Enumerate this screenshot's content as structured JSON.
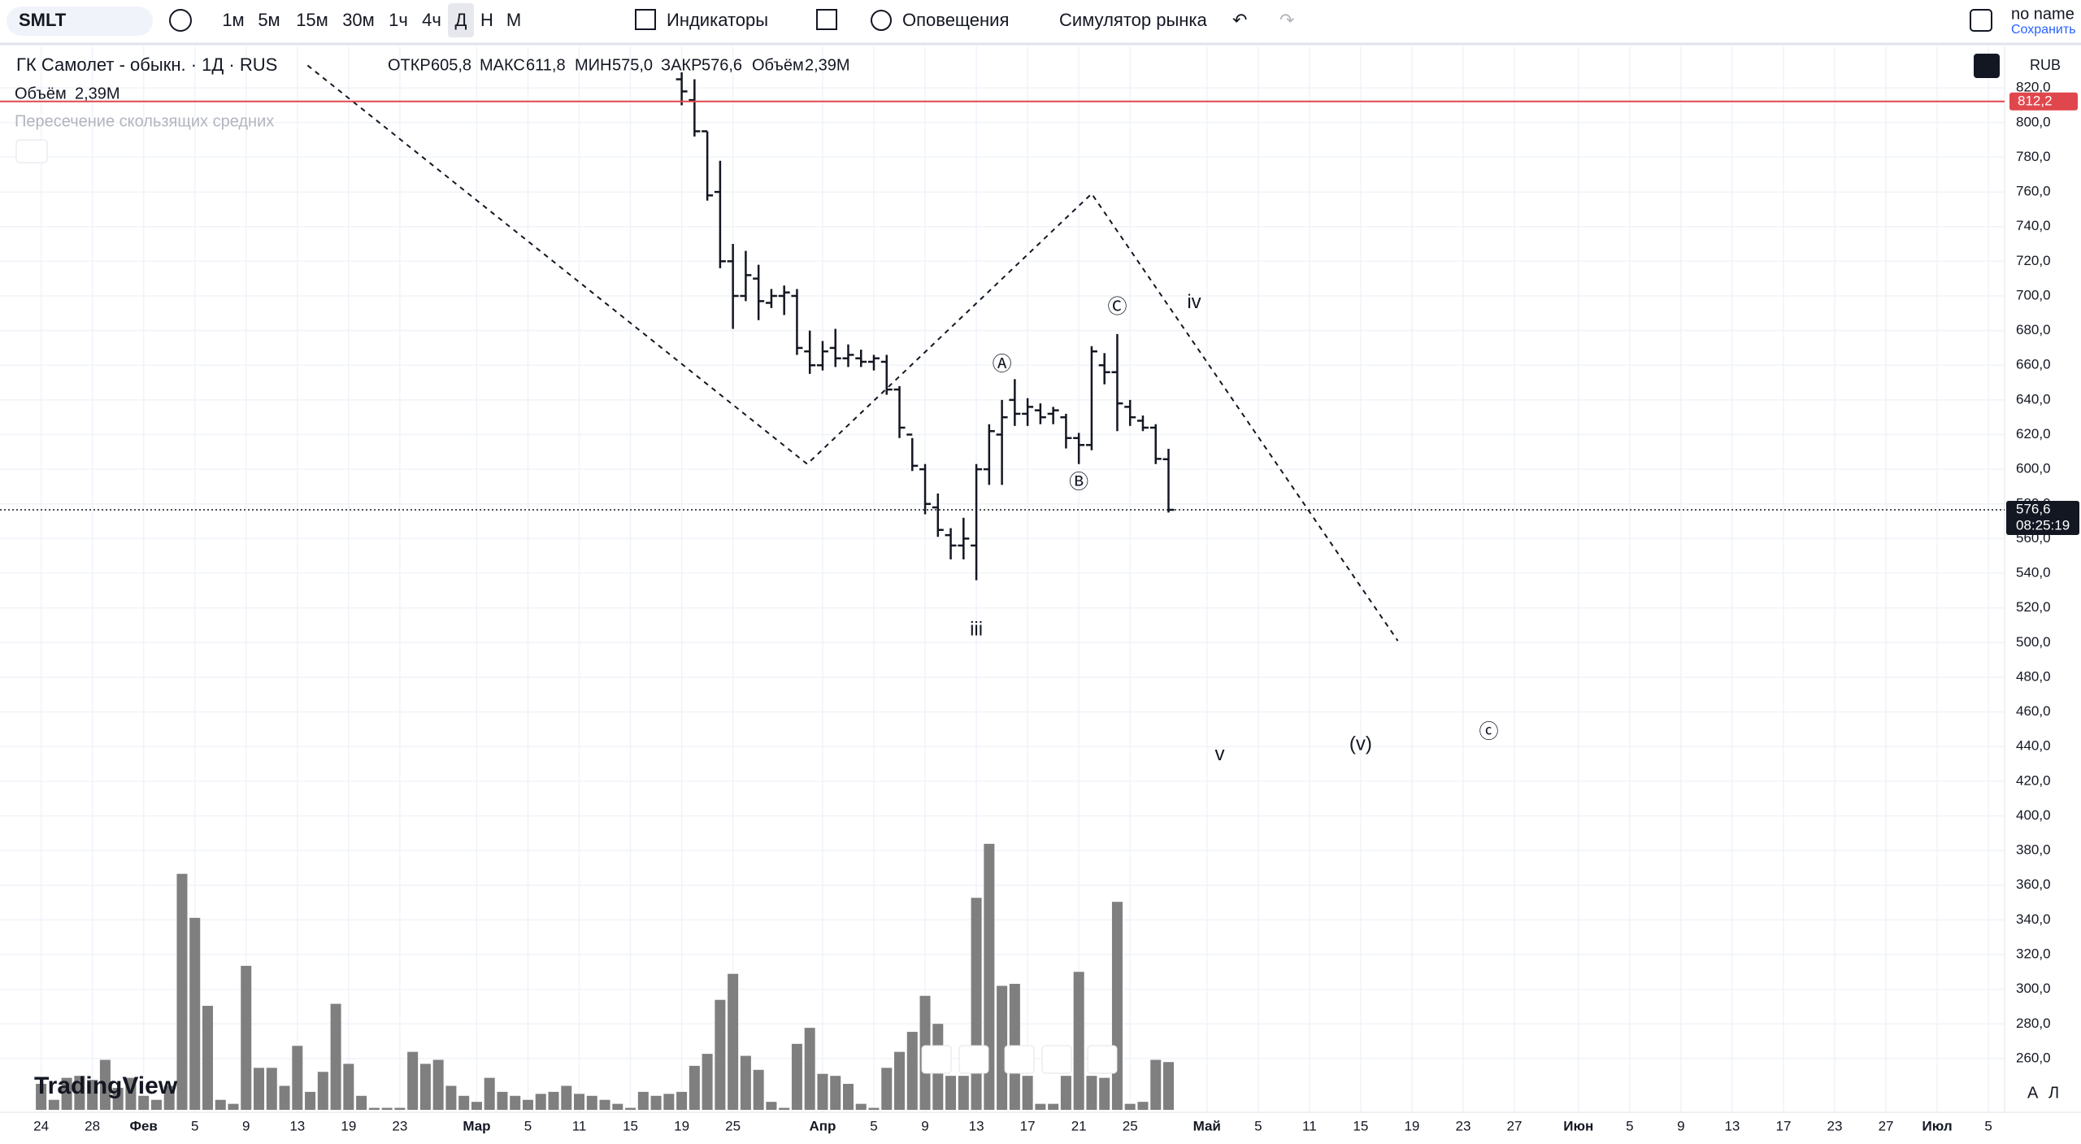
{
  "toolbar": {
    "symbol": "SMLT",
    "intervals": [
      "1м",
      "5м",
      "15м",
      "30м",
      "1ч",
      "4ч",
      "Д",
      "Н",
      "М"
    ],
    "indicators": "Индикаторы",
    "alerts": "Оповещения",
    "replay": "Симулятор рынка",
    "layout_name": "no name",
    "save": "Сохранить"
  },
  "legend": {
    "title": "ГК Самолет - обыкн. · 1Д · RUS",
    "open_label": "ОТКР",
    "open": "605,8",
    "high_label": "МАКС",
    "high": "611,8",
    "low_label": "МИН",
    "low": "575,0",
    "close_label": "ЗАКР",
    "close": "576,6",
    "volume_label": "Объём",
    "volume": "2,39M",
    "indicator": "Пересечение скользящих средних"
  },
  "currency": "RUB",
  "scale_buttons": [
    "A",
    "Л"
  ],
  "logo": "TradingView",
  "chart_data": {
    "type": "ohlc",
    "ylim": [
      229,
      844
    ],
    "yticks": [
      {
        "value": 260,
        "label": "260,0"
      },
      {
        "value": 280,
        "label": "280,0"
      },
      {
        "value": 300,
        "label": "300,0"
      },
      {
        "value": 320,
        "label": "320,0"
      },
      {
        "value": 340,
        "label": "340,0"
      },
      {
        "value": 360,
        "label": "360,0"
      },
      {
        "value": 380,
        "label": "380,0"
      },
      {
        "value": 400,
        "label": "400,0"
      },
      {
        "value": 420,
        "label": "420,0"
      },
      {
        "value": 440,
        "label": "440,0"
      },
      {
        "value": 460,
        "label": "460,0"
      },
      {
        "value": 480,
        "label": "480,0"
      },
      {
        "value": 500,
        "label": "500,0"
      },
      {
        "value": 520,
        "label": "520,0"
      },
      {
        "value": 540,
        "label": "540,0"
      },
      {
        "value": 560,
        "label": "560,0"
      },
      {
        "value": 580,
        "label": "580,0"
      },
      {
        "value": 600,
        "label": "600,0"
      },
      {
        "value": 620,
        "label": "620,0"
      },
      {
        "value": 640,
        "label": "640,0"
      },
      {
        "value": 660,
        "label": "660,0"
      },
      {
        "value": 680,
        "label": "680,0"
      },
      {
        "value": 700,
        "label": "700,0"
      },
      {
        "value": 720,
        "label": "720,0"
      },
      {
        "value": 740,
        "label": "740,0"
      },
      {
        "value": 760,
        "label": "760,0"
      },
      {
        "value": 780,
        "label": "780,0"
      },
      {
        "value": 800,
        "label": "800,0"
      },
      {
        "value": 820,
        "label": "820,0"
      }
    ],
    "xticks": [
      {
        "value": 0,
        "label": "24"
      },
      {
        "value": 4,
        "label": "28"
      },
      {
        "value": 8,
        "label": "Фев"
      },
      {
        "value": 12,
        "label": "5"
      },
      {
        "value": 16,
        "label": "9"
      },
      {
        "value": 20,
        "label": "13"
      },
      {
        "value": 24,
        "label": "19"
      },
      {
        "value": 28,
        "label": "23"
      },
      {
        "value": 34,
        "label": "Мар"
      },
      {
        "value": 38,
        "label": "5"
      },
      {
        "value": 42,
        "label": "11"
      },
      {
        "value": 46,
        "label": "15"
      },
      {
        "value": 50,
        "label": "19"
      },
      {
        "value": 54,
        "label": "25"
      },
      {
        "value": 61,
        "label": "Апр"
      },
      {
        "value": 65,
        "label": "5"
      },
      {
        "value": 69,
        "label": "9"
      },
      {
        "value": 73,
        "label": "13"
      },
      {
        "value": 77,
        "label": "17"
      },
      {
        "value": 81,
        "label": "21"
      },
      {
        "value": 85,
        "label": "25"
      },
      {
        "value": 91,
        "label": "Май"
      },
      {
        "value": 95,
        "label": "5"
      },
      {
        "value": 99,
        "label": "11"
      },
      {
        "value": 103,
        "label": "15"
      },
      {
        "value": 107,
        "label": "19"
      },
      {
        "value": 111,
        "label": "23"
      },
      {
        "value": 115,
        "label": "27"
      },
      {
        "value": 120,
        "label": "Июн"
      },
      {
        "value": 124,
        "label": "5"
      },
      {
        "value": 128,
        "label": "9"
      },
      {
        "value": 132,
        "label": "13"
      },
      {
        "value": 136,
        "label": "17"
      },
      {
        "value": 140,
        "label": "23"
      },
      {
        "value": 144,
        "label": "27"
      },
      {
        "value": 148,
        "label": "Июл"
      },
      {
        "value": 152,
        "label": "5"
      }
    ],
    "ohlc": [
      null,
      null,
      null,
      null,
      null,
      null,
      null,
      null,
      null,
      null,
      null,
      null,
      null,
      null,
      null,
      null,
      null,
      null,
      null,
      null,
      null,
      null,
      null,
      null,
      null,
      null,
      null,
      null,
      null,
      null,
      null,
      null,
      null,
      null,
      null,
      null,
      null,
      null,
      null,
      null,
      null,
      null,
      null,
      null,
      null,
      null,
      null,
      null,
      null,
      null,
      [
        825,
        829,
        810,
        818
      ],
      [
        813,
        825,
        792,
        795
      ],
      [
        795,
        795,
        755,
        758
      ],
      [
        760,
        778,
        716,
        720
      ],
      [
        720,
        730,
        681,
        700
      ],
      [
        700,
        726,
        697,
        712
      ],
      [
        710,
        718,
        686,
        697
      ],
      [
        696,
        704,
        693,
        700
      ],
      [
        700,
        706,
        689,
        702
      ],
      [
        700,
        704,
        666,
        670
      ],
      [
        668,
        680,
        655,
        660
      ],
      [
        660,
        674,
        657,
        668
      ],
      [
        670,
        681,
        659,
        664
      ],
      [
        664,
        672,
        659,
        666
      ],
      [
        664,
        669,
        659,
        662
      ],
      [
        662,
        666,
        657,
        664
      ],
      [
        662,
        666,
        643,
        646
      ],
      [
        646,
        648,
        618,
        624
      ],
      [
        620,
        618,
        599,
        602
      ],
      [
        600,
        603,
        574,
        580
      ],
      [
        578,
        586,
        561,
        565
      ],
      [
        562,
        566,
        548,
        556
      ],
      [
        556,
        572,
        548,
        560
      ],
      [
        556,
        603,
        536,
        600
      ],
      [
        600,
        626,
        591,
        622
      ],
      [
        620,
        640,
        591,
        630
      ],
      [
        640,
        652,
        625,
        632
      ],
      [
        632,
        641,
        625,
        636
      ],
      [
        634,
        638,
        626,
        630
      ],
      [
        632,
        636,
        626,
        634
      ],
      [
        630,
        632,
        612,
        618
      ],
      [
        618,
        621,
        603,
        614
      ],
      [
        614,
        671,
        611,
        668
      ],
      [
        660,
        667,
        649,
        656
      ],
      [
        656,
        678,
        622,
        638
      ],
      [
        636,
        640,
        625,
        630
      ],
      [
        628,
        631,
        622,
        624
      ],
      [
        624,
        626,
        603,
        606
      ],
      [
        605.8,
        611.8,
        575.0,
        576.6
      ]
    ],
    "volume": [
      1.3,
      0.5,
      1.6,
      1.7,
      1.5,
      2.5,
      1.1,
      1.6,
      0.7,
      0.5,
      1.2,
      11.8,
      9.6,
      5.2,
      0.5,
      0.3,
      7.2,
      2.1,
      2.1,
      1.2,
      3.2,
      0.9,
      1.9,
      5.3,
      2.3,
      0.7,
      0.1,
      0.1,
      0.1,
      2.9,
      2.3,
      2.5,
      1.2,
      0.7,
      0.4,
      1.6,
      0.9,
      0.7,
      0.5,
      0.8,
      0.9,
      1.2,
      0.8,
      0.7,
      0.5,
      0.3,
      0.1,
      0.9,
      0.7,
      0.8,
      0.9,
      2.2,
      2.8,
      5.5,
      6.8,
      2.7,
      2.0,
      0.4,
      0.1,
      3.3,
      4.1,
      1.8,
      1.7,
      1.3,
      0.3,
      0.1,
      2.1,
      2.9,
      3.9,
      5.7,
      4.3,
      1.7,
      1.7,
      10.6,
      13.3,
      6.2,
      6.3,
      1.7,
      0.3,
      0.3,
      1.7,
      6.9,
      1.7,
      1.6,
      10.4,
      0.3,
      0.4,
      2.5,
      2.39
    ],
    "volume_color": "#7f7f7f",
    "last_price": {
      "value": 576.6,
      "label": "576,6",
      "timer": "08:25:19"
    },
    "high_line": {
      "value": 812.2,
      "label": "812,2",
      "color": "#e0474c"
    },
    "wave_lines": [
      [
        {
          "x": 20.8,
          "price": 833
        },
        {
          "x": 59.8,
          "price": 603
        },
        {
          "x": 82,
          "price": 759
        },
        {
          "x": 105.9,
          "price": 501
        }
      ]
    ],
    "annotations": [
      {
        "text": "iii",
        "x": 73,
        "price": 507
      },
      {
        "text": "Ⓐ",
        "x": 75,
        "price": 660
      },
      {
        "text": "Ⓑ",
        "x": 81,
        "price": 592
      },
      {
        "text": "Ⓒ",
        "x": 84,
        "price": 693
      },
      {
        "text": "iv",
        "x": 90,
        "price": 696
      },
      {
        "text": "v",
        "x": 92,
        "price": 435
      },
      {
        "text": "(v)",
        "x": 103,
        "price": 441
      },
      {
        "text": "ⓒ",
        "x": 113,
        "price": 448
      }
    ]
  }
}
